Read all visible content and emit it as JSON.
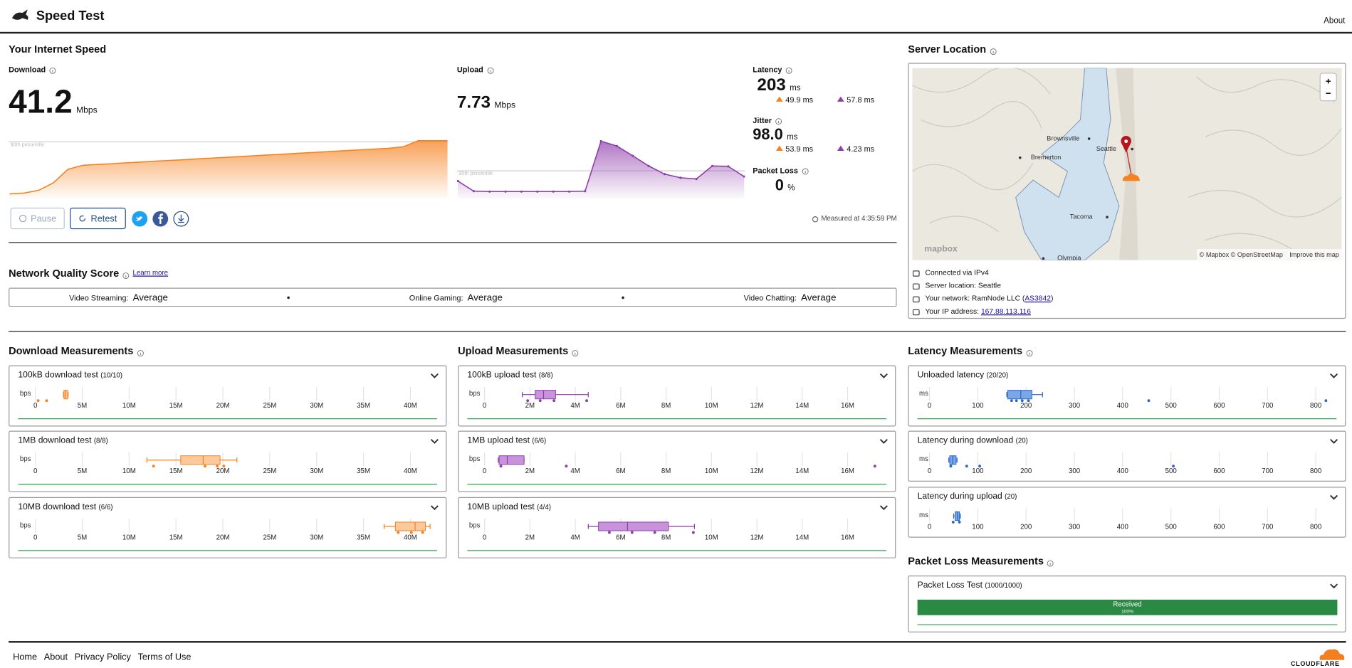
{
  "header": {
    "title": "Speed Test",
    "about": "About"
  },
  "speed": {
    "title": "Your Internet Speed",
    "download": {
      "label": "Download",
      "value": 41.2,
      "unit": "Mbps",
      "percentile_label": "90th percentile",
      "ylim": [
        0,
        42
      ],
      "p90": 40.3,
      "values": [
        1.9,
        2.5,
        4.5,
        10,
        20,
        23,
        23.6,
        24.2,
        24.8,
        25.4,
        26,
        26.6,
        27.2,
        27.8,
        28.4,
        29,
        29.6,
        30.2,
        30.8,
        31.4,
        32,
        32.6,
        33.2,
        33.8,
        34.4,
        35,
        35.6,
        36.8,
        41.2,
        41.2,
        41.2
      ]
    },
    "upload": {
      "label": "Upload",
      "value": 7.73,
      "unit": "Mbps",
      "percentile_label": "90th percentile",
      "ylim": [
        0,
        14
      ],
      "p90": 6.3,
      "values": [
        3.8,
        1.3,
        1.2,
        1.2,
        1.2,
        1.2,
        1.2,
        1.2,
        1.3,
        13.6,
        12.4,
        10,
        7.5,
        5.5,
        4.6,
        4.3,
        7.5,
        7.4,
        4.9
      ]
    },
    "latency": {
      "label": "Latency",
      "value": 203,
      "unit": "ms",
      "during_download": 49.9,
      "during_upload": 57.8
    },
    "jitter": {
      "label": "Jitter",
      "value": "98.0",
      "unit": "ms",
      "during_download": 53.9,
      "during_upload": 4.23
    },
    "packet_loss": {
      "label": "Packet Loss",
      "value": 0,
      "unit": "%"
    },
    "buttons": {
      "pause": "Pause",
      "retest": "Retest"
    },
    "measured": "Measured at 4:35:59 PM"
  },
  "network_quality": {
    "title": "Network Quality Score",
    "link": "Learn more",
    "items": [
      {
        "label": "Video Streaming:",
        "value": "Average"
      },
      {
        "label": "Online Gaming:",
        "value": "Average"
      },
      {
        "label": "Video Chatting:",
        "value": "Average"
      }
    ]
  },
  "server": {
    "title": "Server Location",
    "map_labels": [
      "Brownsville",
      "Seattle",
      "Bremerton",
      "Tacoma",
      "Olympia"
    ],
    "map_brand": "mapbox",
    "attribution": "© Mapbox © OpenStreetMap",
    "improve": "Improve this map",
    "zoom_in": "+",
    "zoom_out": "−",
    "connection": "Connected via IPv4",
    "location": "Server location: Seattle",
    "network_prefix": "Your network: RamNode LLC (",
    "asn": "AS3842",
    "network_suffix": ")",
    "ip_label": "Your IP address:",
    "ip": "167.88.113.116"
  },
  "measurements": {
    "download": {
      "title": "Download Measurements",
      "unit": "bps",
      "color": "#f6821f",
      "fill": "#fbc99c",
      "xlim": [
        0,
        43000000
      ],
      "xticks": [
        0,
        {
          "value": 5000000,
          "label": "5M"
        },
        {
          "value": 10000000,
          "label": "10M"
        },
        {
          "value": 15000000,
          "label": "15M"
        },
        {
          "value": 20000000,
          "label": "20M"
        },
        {
          "value": 25000000,
          "label": "25M"
        },
        {
          "value": 30000000,
          "label": "30M"
        },
        {
          "value": 35000000,
          "label": "35M"
        },
        {
          "value": 40000000,
          "label": "40M"
        }
      ],
      "tests": [
        {
          "name": "100kB download test",
          "count": "(10/10)",
          "box": [
            3000000,
            3050000,
            3200000,
            3450000,
            3500000
          ],
          "points": [
            300000,
            1200000
          ]
        },
        {
          "name": "1MB download test",
          "count": "(8/8)",
          "box": [
            11900000,
            15500000,
            17900000,
            19700000,
            21500000
          ],
          "points": [
            12600000,
            18100000,
            19400000,
            20100000
          ]
        },
        {
          "name": "10MB download test",
          "count": "(6/6)",
          "box": [
            37200000,
            38400000,
            40500000,
            41600000,
            42100000
          ],
          "points": [
            38700000,
            40100000,
            41300000
          ]
        }
      ]
    },
    "upload": {
      "title": "Upload Measurements",
      "unit": "bps",
      "color": "#8e3cab",
      "fill": "#c794db",
      "xlim": [
        0,
        17800000
      ],
      "xticks": [
        0,
        {
          "value": 2000000,
          "label": "2M"
        },
        {
          "value": 4000000,
          "label": "4M"
        },
        {
          "value": 6000000,
          "label": "6M"
        },
        {
          "value": 8000000,
          "label": "8M"
        },
        {
          "value": 10000000,
          "label": "10M"
        },
        {
          "value": 12000000,
          "label": "12M"
        },
        {
          "value": 14000000,
          "label": "14M"
        },
        {
          "value": 16000000,
          "label": "16M"
        }
      ],
      "tests": [
        {
          "name": "100kB upload test",
          "count": "(8/8)",
          "box": [
            1660000,
            2230000,
            2600000,
            3130000,
            4570000
          ],
          "points": [
            1900000,
            2450000,
            3060000,
            4500000
          ]
        },
        {
          "name": "1MB upload test",
          "count": "(6/6)",
          "box": [
            600000,
            640000,
            1000000,
            1740000,
            1740000
          ],
          "points": [
            720000,
            3600000,
            17200000
          ]
        },
        {
          "name": "10MB upload test",
          "count": "(4/4)",
          "box": [
            4570000,
            5020000,
            6300000,
            8100000,
            9250000
          ],
          "points": [
            5500000,
            6500000,
            7500000,
            9200000
          ]
        }
      ]
    },
    "latency": {
      "title": "Latency Measurements",
      "unit": "ms",
      "color": "#2f64c8",
      "fill": "#7aa7e6",
      "xlim": [
        0,
        850
      ],
      "xticks": [
        0,
        100,
        200,
        300,
        400,
        500,
        600,
        700,
        800
      ],
      "tests": [
        {
          "name": "Unloaded latency",
          "count": "(20/20)",
          "box": [
            160,
            162,
            189,
            212,
            234
          ],
          "points": [
            170,
            180,
            192,
            205,
            454,
            821
          ]
        },
        {
          "name": "Latency during download",
          "count": "(20)",
          "box": [
            40,
            42,
            48,
            55,
            57
          ],
          "points": [
            44,
            77,
            104,
            505
          ]
        },
        {
          "name": "Latency during upload",
          "count": "(20)",
          "box": [
            50,
            53,
            58,
            62,
            64
          ],
          "points": [
            49,
            62
          ]
        }
      ]
    }
  },
  "packet_loss": {
    "title": "Packet Loss Measurements",
    "test": "Packet Loss Test",
    "count": "(1000/1000)",
    "bar_label": "Received",
    "value": 100,
    "value_label": "100%"
  },
  "footer": {
    "links": [
      "Home",
      "About",
      "Privacy Policy",
      "Terms of Use"
    ],
    "brand": "CLOUDFLARE"
  }
}
